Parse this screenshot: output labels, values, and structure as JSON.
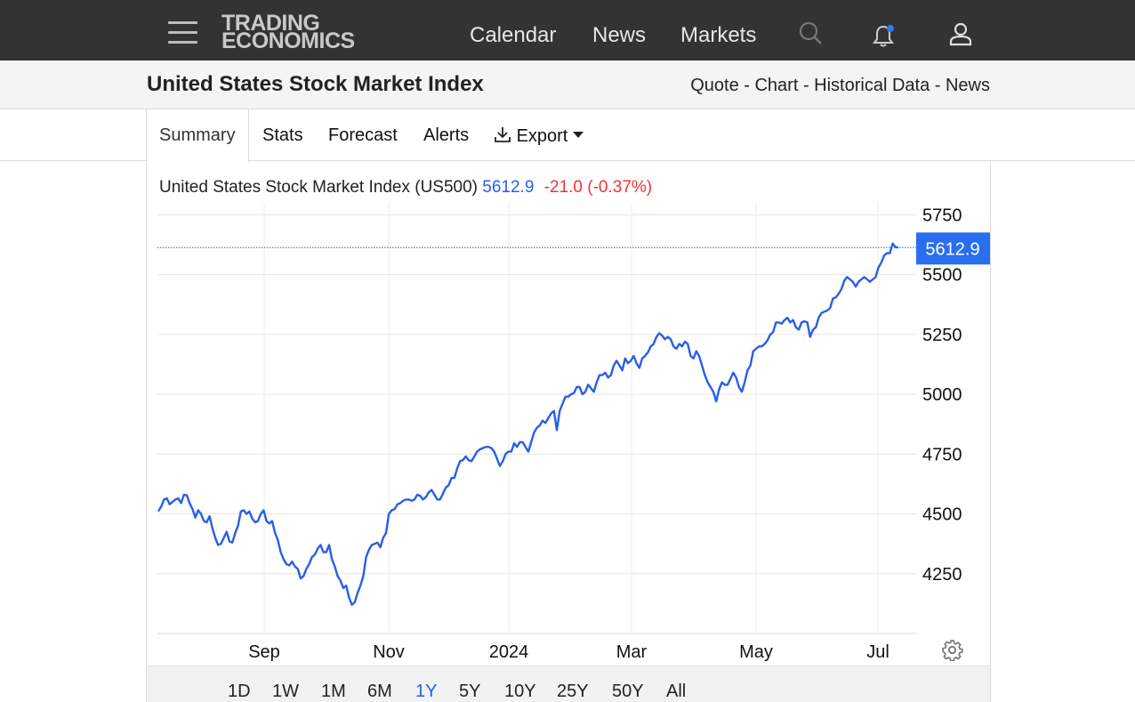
{
  "header": {
    "logo_line1": "TRADING",
    "logo_line2": "ECONOMICS",
    "nav": [
      "Calendar",
      "News",
      "Markets"
    ]
  },
  "subheader": {
    "title": "United States Stock Market Index",
    "links": "Quote - Chart - Historical Data - News"
  },
  "tabs": [
    "Summary",
    "Stats",
    "Forecast",
    "Alerts",
    "Export"
  ],
  "ranges": [
    "1D",
    "1W",
    "1M",
    "6M",
    "1Y",
    "5Y",
    "10Y",
    "25Y",
    "50Y",
    "All"
  ],
  "active_range": "1Y",
  "colors": {
    "line": "#2a5ee8",
    "negative": "#e33333",
    "topbar": "#333333"
  },
  "chart_data": {
    "type": "line",
    "legend": {
      "name": "United States Stock Market Index (US500)",
      "price": "5612.9",
      "change": "-21.0 (-0.37%)"
    },
    "last_value_label": "5612.9",
    "y_ticks": [
      4250,
      4500,
      4750,
      5000,
      5250,
      5500,
      5750
    ],
    "x_ticks": [
      "Sep",
      "Nov",
      "2024",
      "Mar",
      "May",
      "Jul"
    ],
    "ylim": [
      4000,
      5800
    ],
    "grid": true,
    "series": [
      {
        "values": [
          4511,
          4530,
          4560,
          4565,
          4540,
          4550,
          4560,
          4565,
          4545,
          4580,
          4578,
          4545,
          4520,
          4485,
          4515,
          4500,
          4470,
          4465,
          4490,
          4440,
          4400,
          4370,
          4375,
          4400,
          4425,
          4385,
          4380,
          4420,
          4450,
          4510,
          4515,
          4500,
          4510,
          4480,
          4465,
          4470,
          4500,
          4515,
          4470,
          4460,
          4470,
          4420,
          4390,
          4340,
          4310,
          4290,
          4285,
          4300,
          4280,
          4270,
          4230,
          4240,
          4270,
          4290,
          4320,
          4330,
          4355,
          4370,
          4340,
          4340,
          4370,
          4310,
          4280,
          4240,
          4220,
          4190,
          4200,
          4150,
          4120,
          4130,
          4170,
          4200,
          4240,
          4320,
          4350,
          4370,
          4375,
          4380,
          4360,
          4400,
          4420,
          4500,
          4515,
          4520,
          4540,
          4545,
          4555,
          4560,
          4560,
          4555,
          4560,
          4580,
          4575,
          4560,
          4570,
          4590,
          4600,
          4580,
          4560,
          4560,
          4585,
          4610,
          4620,
          4650,
          4650,
          4690,
          4720,
          4725,
          4740,
          4725,
          4720,
          4740,
          4760,
          4770,
          4775,
          4780,
          4780,
          4775,
          4760,
          4730,
          4700,
          4720,
          4750,
          4760,
          4760,
          4795,
          4780,
          4800,
          4800,
          4780,
          4760,
          4800,
          4840,
          4860,
          4870,
          4890,
          4880,
          4900,
          4920,
          4930,
          4850,
          4930,
          4960,
          4990,
          4990,
          5000,
          5005,
          5030,
          5030,
          5000,
          5010,
          5040,
          5025,
          5010,
          5050,
          5080,
          5080,
          5090,
          5070,
          5080,
          5120,
          5140,
          5120,
          5100,
          5150,
          5130,
          5140,
          5160,
          5130,
          5110,
          5150,
          5160,
          5175,
          5200,
          5210,
          5240,
          5255,
          5245,
          5230,
          5240,
          5230,
          5200,
          5190,
          5210,
          5200,
          5220,
          5210,
          5160,
          5150,
          5180,
          5160,
          5120,
          5080,
          5050,
          5030,
          5010,
          4970,
          5020,
          5050,
          5040,
          5040,
          5065,
          5090,
          5070,
          5030,
          5010,
          5050,
          5100,
          5120,
          5180,
          5190,
          5200,
          5200,
          5210,
          5225,
          5250,
          5260,
          5300,
          5300,
          5295,
          5310,
          5320,
          5300,
          5310,
          5280,
          5270,
          5300,
          5305,
          5300,
          5240,
          5270,
          5280,
          5320,
          5340,
          5345,
          5350,
          5360,
          5400,
          5405,
          5420,
          5440,
          5475,
          5490,
          5480,
          5470,
          5450,
          5470,
          5480,
          5490,
          5480,
          5470,
          5480,
          5490,
          5530,
          5550,
          5580,
          5590,
          5590,
          5630,
          5615,
          5612.9
        ]
      }
    ]
  }
}
